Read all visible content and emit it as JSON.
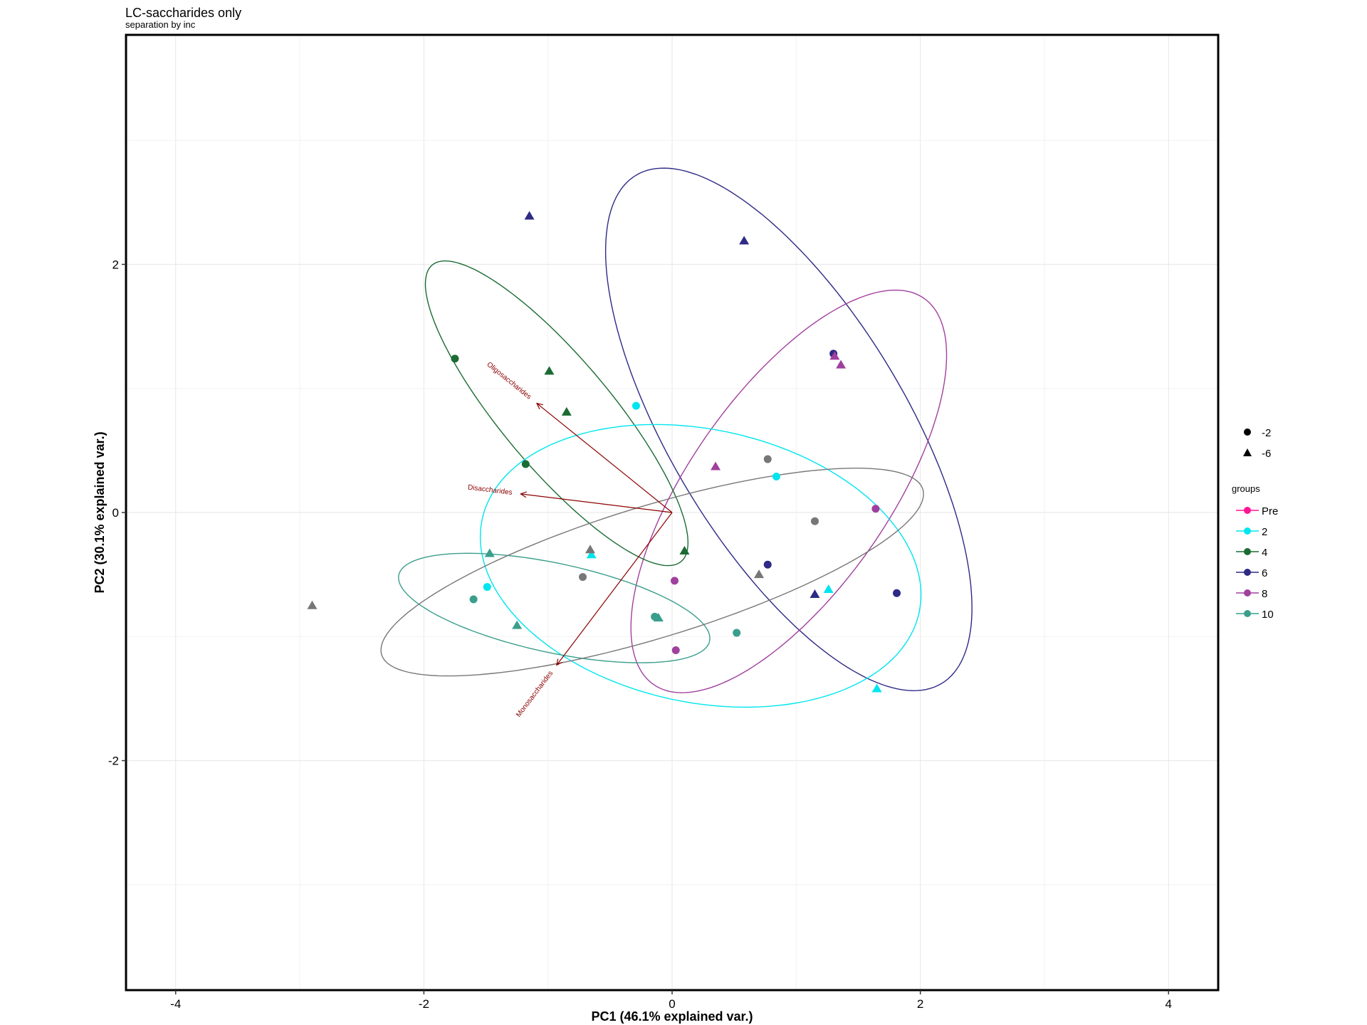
{
  "chart_data": {
    "type": "scatter",
    "title": "LC-saccharides only",
    "subtitle": "separation by inc",
    "xlabel": "PC1 (46.1% explained var.)",
    "ylabel": "PC2 (30.1% explained var.)",
    "xlim": [
      -4.4,
      4.4
    ],
    "ylim": [
      -3.85,
      3.85
    ],
    "xticks": [
      -4,
      -2,
      0,
      2,
      4
    ],
    "yticks": [
      -2,
      0,
      2
    ],
    "grid": true,
    "shape_legend": [
      {
        "label": "-2",
        "shape": "circle"
      },
      {
        "label": "-6",
        "shape": "triangle"
      }
    ],
    "legend_title": "groups",
    "groups": [
      {
        "name": "Pre",
        "color": "#FF1493"
      },
      {
        "name": "2",
        "color": "#00E5EE"
      },
      {
        "name": "4",
        "color": "#1B6B33"
      },
      {
        "name": "6",
        "color": "#2E2A86"
      },
      {
        "name": "8",
        "color": "#A0409E"
      },
      {
        "name": "10",
        "color": "#3A9E8C"
      },
      {
        "name": "",
        "color": "#777777"
      }
    ],
    "points": [
      {
        "x": -1.15,
        "y": 2.39,
        "shape": "triangle",
        "group": "6"
      },
      {
        "x": 0.58,
        "y": 2.19,
        "shape": "triangle",
        "group": "6"
      },
      {
        "x": 1.3,
        "y": 1.28,
        "shape": "circle",
        "group": "6"
      },
      {
        "x": 1.81,
        "y": -0.65,
        "shape": "circle",
        "group": "6"
      },
      {
        "x": 0.77,
        "y": -0.42,
        "shape": "circle",
        "group": "6"
      },
      {
        "x": 1.15,
        "y": -0.66,
        "shape": "triangle",
        "group": "6"
      },
      {
        "x": 1.31,
        "y": 1.26,
        "shape": "triangle",
        "group": "8"
      },
      {
        "x": 1.36,
        "y": 1.19,
        "shape": "triangle",
        "group": "8"
      },
      {
        "x": 0.35,
        "y": 0.37,
        "shape": "triangle",
        "group": "8"
      },
      {
        "x": 1.64,
        "y": 0.03,
        "shape": "circle",
        "group": "8"
      },
      {
        "x": 0.02,
        "y": -0.55,
        "shape": "circle",
        "group": "8"
      },
      {
        "x": 0.03,
        "y": -1.11,
        "shape": "circle",
        "group": "8"
      },
      {
        "x": -1.75,
        "y": 1.24,
        "shape": "circle",
        "group": "4"
      },
      {
        "x": -0.99,
        "y": 1.14,
        "shape": "triangle",
        "group": "4"
      },
      {
        "x": -0.85,
        "y": 0.81,
        "shape": "triangle",
        "group": "4"
      },
      {
        "x": -1.18,
        "y": 0.39,
        "shape": "circle",
        "group": "4"
      },
      {
        "x": 0.1,
        "y": -0.31,
        "shape": "triangle",
        "group": "4"
      },
      {
        "x": -0.29,
        "y": 0.86,
        "shape": "circle",
        "group": "2"
      },
      {
        "x": 0.84,
        "y": 0.29,
        "shape": "circle",
        "group": "2"
      },
      {
        "x": -0.65,
        "y": -0.34,
        "shape": "triangle",
        "group": "2"
      },
      {
        "x": -1.49,
        "y": -0.6,
        "shape": "circle",
        "group": "2"
      },
      {
        "x": 1.26,
        "y": -0.62,
        "shape": "triangle",
        "group": "2"
      },
      {
        "x": 1.65,
        "y": -1.42,
        "shape": "triangle",
        "group": "2"
      },
      {
        "x": -1.47,
        "y": -0.33,
        "shape": "triangle",
        "group": "10"
      },
      {
        "x": -1.6,
        "y": -0.7,
        "shape": "circle",
        "group": "10"
      },
      {
        "x": -1.25,
        "y": -0.91,
        "shape": "triangle",
        "group": "10"
      },
      {
        "x": -0.14,
        "y": -0.84,
        "shape": "circle",
        "group": "10"
      },
      {
        "x": -0.11,
        "y": -0.85,
        "shape": "triangle",
        "group": "10"
      },
      {
        "x": 0.52,
        "y": -0.97,
        "shape": "circle",
        "group": "10"
      },
      {
        "x": -2.9,
        "y": -0.75,
        "shape": "triangle",
        "group": ""
      },
      {
        "x": -0.66,
        "y": -0.3,
        "shape": "triangle",
        "group": ""
      },
      {
        "x": -0.72,
        "y": -0.52,
        "shape": "circle",
        "group": ""
      },
      {
        "x": 0.77,
        "y": 0.43,
        "shape": "circle",
        "group": ""
      },
      {
        "x": 1.15,
        "y": -0.07,
        "shape": "circle",
        "group": ""
      },
      {
        "x": 0.7,
        "y": -0.5,
        "shape": "triangle",
        "group": ""
      }
    ],
    "ellipses": [
      {
        "group": "6",
        "cx": 0.94,
        "cy": 0.67,
        "rx": 2.39,
        "ry": 0.95,
        "angle": -59
      },
      {
        "group": "8",
        "cx": 0.94,
        "cy": 0.17,
        "rx": 1.9,
        "ry": 0.8,
        "angle": 55
      },
      {
        "group": "4",
        "cx": -0.93,
        "cy": 0.8,
        "rx": 1.56,
        "ry": 0.44,
        "angle": -50
      },
      {
        "group": "2",
        "cx": 0.23,
        "cy": -0.43,
        "rx": 1.8,
        "ry": 1.1,
        "angle": -12
      },
      {
        "group": "10",
        "cx": -0.95,
        "cy": -0.77,
        "rx": 1.28,
        "ry": 0.36,
        "angle": -12
      },
      {
        "group": "",
        "cx": -0.16,
        "cy": -0.48,
        "rx": 2.28,
        "ry": 0.53,
        "angle": 17
      }
    ],
    "arrows": [
      {
        "label": "Oligosaccharides",
        "x": -1.09,
        "y": 0.88
      },
      {
        "label": "Disaccharides",
        "x": -1.22,
        "y": 0.15
      },
      {
        "label": "Monosaccharides",
        "x": -0.93,
        "y": -1.23
      }
    ]
  }
}
